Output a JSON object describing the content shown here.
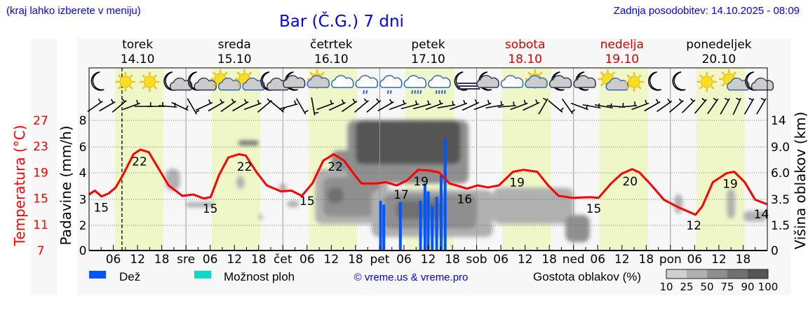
{
  "header": {
    "location_hint": "(kraj lahko izberete v meniju)",
    "title": "Bar (Č.G.) 7 dni",
    "last_update": "Zadnja posodobitev: 14.10.2025 - 08:09"
  },
  "colors": {
    "temp": "#ff0000",
    "rain": "#0055ff",
    "showers": "#10d8c8",
    "daylight": "#eff7c8",
    "weekend": "#dd0000",
    "link": "#0000ff"
  },
  "days": [
    {
      "name": "torek",
      "date": "14.10",
      "weekend": false
    },
    {
      "name": "sreda",
      "date": "15.10",
      "weekend": false
    },
    {
      "name": "četrtek",
      "date": "16.10",
      "weekend": false
    },
    {
      "name": "petek",
      "date": "17.10",
      "weekend": false
    },
    {
      "name": "sobota",
      "date": "18.10",
      "weekend": true
    },
    {
      "name": "nedelja",
      "date": "19.10",
      "weekend": true
    },
    {
      "name": "ponedeljek",
      "date": "20.10",
      "weekend": false
    }
  ],
  "weather_icons": [
    "moon",
    "sun",
    "sun",
    "moon-cloud",
    "moon-cloud",
    "sun-cloud",
    "sun-cloud",
    "moon-cloud",
    "moon-cloudy",
    "sun-cloudy",
    "cloudy",
    "cloudy-light-rain",
    "cloudy-light-rain",
    "cloudy-rain",
    "cloudy-rain",
    "moon-fog",
    "moon-cloudy",
    "cloudy",
    "sun-cloudy",
    "moon-cloudy",
    "moon-cloudy",
    "sun-cloud",
    "sun",
    "moon",
    "moon",
    "sun",
    "sun-cloud",
    "moon-cloud"
  ],
  "wind_barb_angles": [
    35,
    30,
    40,
    20,
    0,
    0,
    -5,
    -25,
    -60,
    25,
    30,
    35,
    30,
    20,
    40,
    -40,
    15,
    -60,
    -80,
    20,
    25,
    35,
    40,
    40,
    30,
    20,
    15,
    15,
    20,
    10,
    20,
    25,
    20,
    10,
    5,
    20,
    25,
    60,
    -40,
    -55,
    -20,
    -10,
    -10,
    -5,
    5,
    20,
    30,
    35,
    40,
    45,
    50,
    55,
    60,
    65,
    60,
    60
  ],
  "chart_data": {
    "type": "line",
    "title": "Bar (Č.G.) 7 dni",
    "x_unit": "hours from 14.10 00:00",
    "x_tick_labels": [
      "06",
      "12",
      "18",
      "sre",
      "06",
      "12",
      "18",
      "čet",
      "06",
      "12",
      "18",
      "pet",
      "06",
      "12",
      "18",
      "sob",
      "06",
      "12",
      "18",
      "ned",
      "06",
      "12",
      "18",
      "pon",
      "06",
      "12",
      "18"
    ],
    "current_time_hour": 8.15,
    "daylight_hours": [
      6.4,
      18.4
    ],
    "temperature": {
      "label": "Temperatura (°C)",
      "ticks": [
        7,
        11,
        15,
        19,
        23,
        27
      ],
      "ylim": [
        7,
        27
      ],
      "points": [
        [
          0,
          15.6
        ],
        [
          1.4,
          16.2
        ],
        [
          3.1,
          15.3
        ],
        [
          4.9,
          15.8
        ],
        [
          6.6,
          16.7
        ],
        [
          8.4,
          18.6
        ],
        [
          11,
          21.8
        ],
        [
          12.7,
          22.5
        ],
        [
          14.8,
          22.1
        ],
        [
          17.1,
          19.7
        ],
        [
          19.7,
          17
        ],
        [
          23.1,
          15.4
        ],
        [
          25.8,
          15.6
        ],
        [
          28.4,
          15
        ],
        [
          30.1,
          15.2
        ],
        [
          32.2,
          18.6
        ],
        [
          34.5,
          21.3
        ],
        [
          37.1,
          21.8
        ],
        [
          38.8,
          21.6
        ],
        [
          41.4,
          19.1
        ],
        [
          44,
          17
        ],
        [
          47.5,
          16.1
        ],
        [
          50.1,
          16.2
        ],
        [
          52.7,
          15.4
        ],
        [
          55.3,
          17.3
        ],
        [
          58,
          20.8
        ],
        [
          60.6,
          21.8
        ],
        [
          63.2,
          20.8
        ],
        [
          65.8,
          18.6
        ],
        [
          67.5,
          17.3
        ],
        [
          71,
          17.3
        ],
        [
          73.6,
          17.5
        ],
        [
          76.2,
          17
        ],
        [
          78.8,
          17.8
        ],
        [
          81.5,
          19.4
        ],
        [
          84.1,
          19.3
        ],
        [
          86.7,
          19
        ],
        [
          89.3,
          17.3
        ],
        [
          91,
          17
        ],
        [
          93.6,
          16.5
        ],
        [
          96.2,
          17
        ],
        [
          98.8,
          16.7
        ],
        [
          101.5,
          17
        ],
        [
          105,
          19.1
        ],
        [
          107.6,
          19.4
        ],
        [
          111,
          19.1
        ],
        [
          113.7,
          17
        ],
        [
          116.3,
          15.4
        ],
        [
          119.7,
          15.1
        ],
        [
          124.1,
          15.2
        ],
        [
          126.2,
          15.1
        ],
        [
          129.3,
          17.3
        ],
        [
          131.9,
          18.8
        ],
        [
          134.5,
          19.5
        ],
        [
          136.3,
          19
        ],
        [
          138.9,
          17.3
        ],
        [
          142.4,
          14.8
        ],
        [
          145.8,
          13.7
        ],
        [
          150.2,
          12.5
        ],
        [
          151.9,
          13.8
        ],
        [
          154.5,
          17.5
        ],
        [
          158,
          18.9
        ],
        [
          159.8,
          19.1
        ],
        [
          162.4,
          17.5
        ],
        [
          165,
          14.8
        ],
        [
          168,
          14.1
        ]
      ],
      "labels": [
        [
          3,
          "15"
        ],
        [
          12.5,
          "22"
        ],
        [
          30,
          "15"
        ],
        [
          38.5,
          "22"
        ],
        [
          54,
          "15"
        ],
        [
          61,
          "22"
        ],
        [
          77.3,
          "17"
        ],
        [
          82.2,
          "19"
        ],
        [
          93,
          "16"
        ],
        [
          106,
          "19"
        ],
        [
          125,
          "15"
        ],
        [
          134,
          "20"
        ],
        [
          149.8,
          "12"
        ],
        [
          158.8,
          "19"
        ],
        [
          167,
          "14"
        ]
      ]
    },
    "precipitation": {
      "label": "Padavine (mm/h)",
      "ticks": [
        0,
        2,
        3,
        4,
        6,
        8
      ],
      "bars": [
        [
          72.2,
          2.95
        ],
        [
          73,
          2.8
        ],
        [
          77.1,
          2.9
        ],
        [
          82.1,
          2.95
        ],
        [
          83.2,
          3.6
        ],
        [
          84,
          3.3
        ],
        [
          85,
          2.75
        ],
        [
          86.1,
          3.1
        ],
        [
          87.2,
          3.9
        ],
        [
          88.2,
          6.6
        ]
      ]
    },
    "cloud_height": {
      "label": "Višina oblakov (km)",
      "ticks": [
        "0",
        "1.5",
        "3.5",
        "6.0",
        "9.0",
        "14"
      ],
      "tick_values": [
        0,
        1.5,
        3.5,
        6,
        9,
        14
      ],
      "patches": [
        [
          19,
          22.5,
          4.3,
          6.5,
          25
        ],
        [
          24,
          31,
          2.9,
          3.3,
          25
        ],
        [
          37,
          42,
          9.3,
          10.2,
          75
        ],
        [
          36.5,
          38.5,
          4.5,
          5.7,
          25
        ],
        [
          42,
          43,
          1.9,
          2.4,
          25
        ],
        [
          47,
          49,
          4.2,
          5,
          25
        ],
        [
          49,
          52,
          2.9,
          3.4,
          25
        ],
        [
          56,
          74,
          1.6,
          6.4,
          25
        ],
        [
          58,
          72,
          2.2,
          5.6,
          50
        ],
        [
          60,
          66,
          6.3,
          8.6,
          50
        ],
        [
          59,
          63,
          3.2,
          4.6,
          75
        ],
        [
          64,
          94,
          5,
          14,
          50
        ],
        [
          66,
          92,
          7,
          14,
          90
        ],
        [
          70,
          100,
          0.8,
          4.4,
          25
        ],
        [
          73,
          96,
          1.3,
          4,
          50
        ],
        [
          76,
          88,
          2,
          3.4,
          75
        ],
        [
          100,
          120,
          1.6,
          4.6,
          25
        ],
        [
          118,
          124,
          0.5,
          2.3,
          50
        ],
        [
          145,
          147,
          2.4,
          4,
          25
        ],
        [
          158,
          160,
          2,
          4.5,
          25
        ],
        [
          162,
          168,
          1.8,
          2.6,
          25
        ]
      ]
    }
  },
  "legend": {
    "rain": "Dež",
    "showers": "Možnost ploh",
    "copyright": "© vreme.us & vreme.pro",
    "cloud_density": "Gostota oblakov (%)",
    "density_levels": [
      "10",
      "25",
      "50",
      "75",
      "90",
      "100"
    ],
    "density_colors": [
      "#cfcfcf",
      "#b0b0b0",
      "#8f8f8f",
      "#707070",
      "#555555"
    ]
  }
}
